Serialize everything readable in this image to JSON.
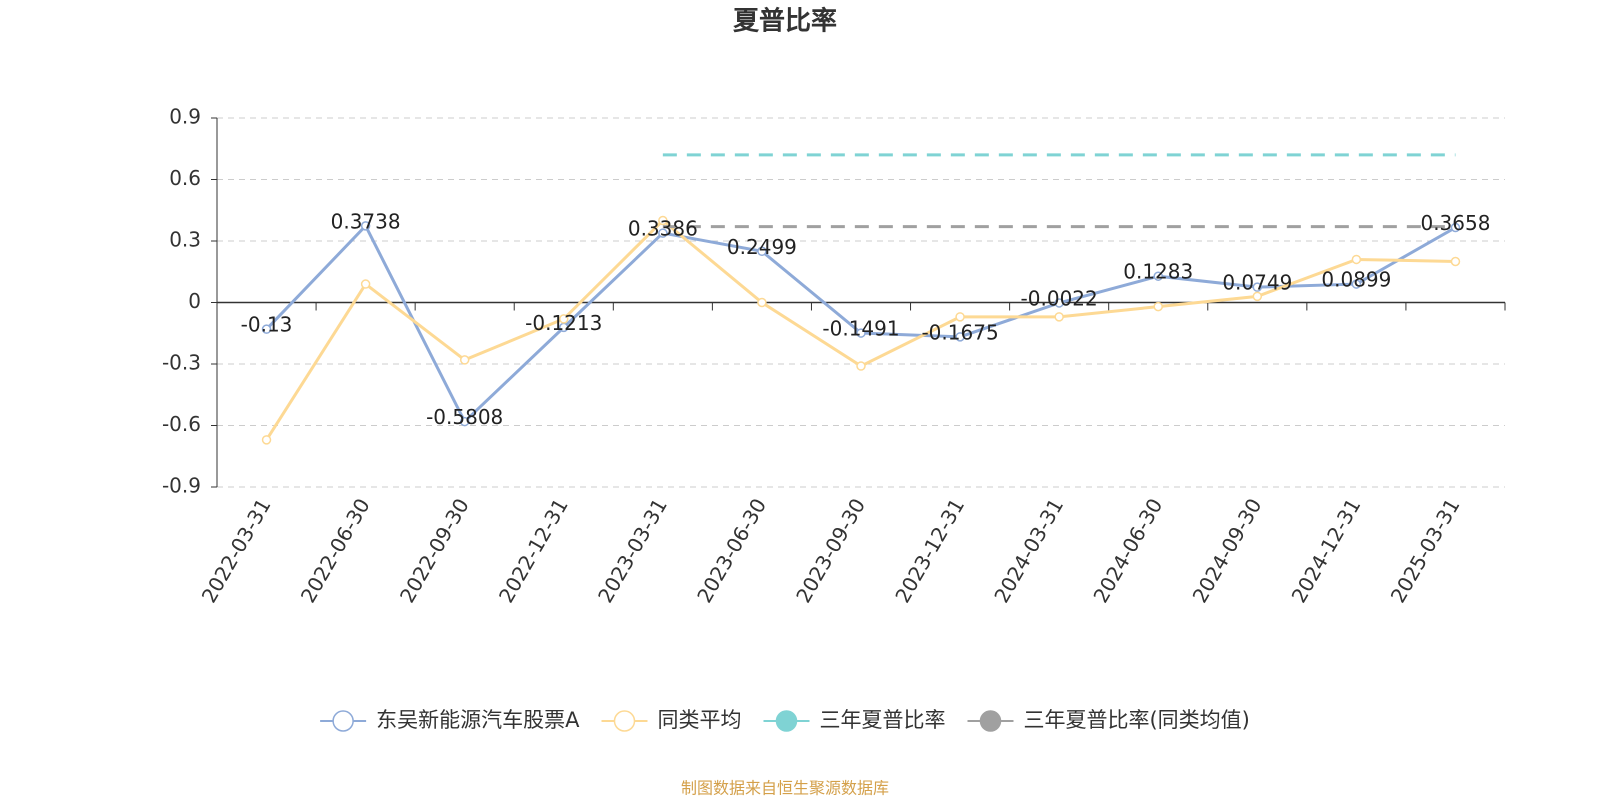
{
  "chart_data": {
    "type": "line",
    "title": "夏普比率",
    "categories": [
      "2022-03-31",
      "2022-06-30",
      "2022-09-30",
      "2022-12-31",
      "2023-03-31",
      "2023-06-30",
      "2023-09-30",
      "2023-12-31",
      "2024-03-31",
      "2024-06-30",
      "2024-09-30",
      "2024-12-31",
      "2025-03-31"
    ],
    "series": [
      {
        "name": "东吴新能源汽车股票A",
        "color": "#8eaad8",
        "line_style": "solid",
        "show_labels": true,
        "values": [
          -0.13,
          0.3738,
          -0.5808,
          -0.1213,
          0.3386,
          0.2499,
          -0.1491,
          -0.1675,
          -0.0022,
          0.1283,
          0.0749,
          0.0899,
          0.3658
        ]
      },
      {
        "name": "同类平均",
        "color": "#fdd994",
        "line_style": "solid",
        "show_labels": false,
        "values": [
          -0.67,
          0.09,
          -0.28,
          -0.08,
          0.4,
          0.0,
          -0.31,
          -0.07,
          -0.07,
          -0.02,
          0.03,
          0.21,
          0.2
        ]
      },
      {
        "name": "三年夏普比率",
        "color": "#7fd3d4",
        "line_style": "dashed",
        "show_labels": false,
        "values": [
          null,
          null,
          null,
          null,
          0.72,
          0.72,
          0.72,
          0.72,
          0.72,
          0.72,
          0.72,
          0.72,
          0.72
        ]
      },
      {
        "name": "三年夏普比率(同类均值)",
        "color": "#a0a0a0",
        "line_style": "dashed",
        "show_labels": false,
        "values": [
          null,
          null,
          null,
          null,
          0.37,
          0.37,
          0.37,
          0.37,
          0.37,
          0.37,
          0.37,
          0.37,
          0.37
        ]
      }
    ],
    "ylim": [
      -0.9,
      0.9
    ],
    "yticks": [
      -0.9,
      -0.6,
      -0.3,
      0,
      0.3,
      0.6,
      0.9
    ],
    "grid": true,
    "legend": "bottom",
    "source": "制图数据来自恒生聚源数据库"
  }
}
